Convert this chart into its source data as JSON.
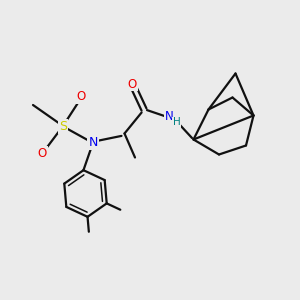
{
  "bg_color": "#ebebeb",
  "atom_colors": {
    "C": "#000000",
    "N": "#0000ee",
    "O": "#ee0000",
    "S": "#cccc00",
    "H": "#008080"
  },
  "bond_color": "#111111",
  "bond_width": 1.6,
  "figsize": [
    3.0,
    3.0
  ],
  "dpi": 100,
  "xlim": [
    0,
    10
  ],
  "ylim": [
    0,
    10
  ]
}
